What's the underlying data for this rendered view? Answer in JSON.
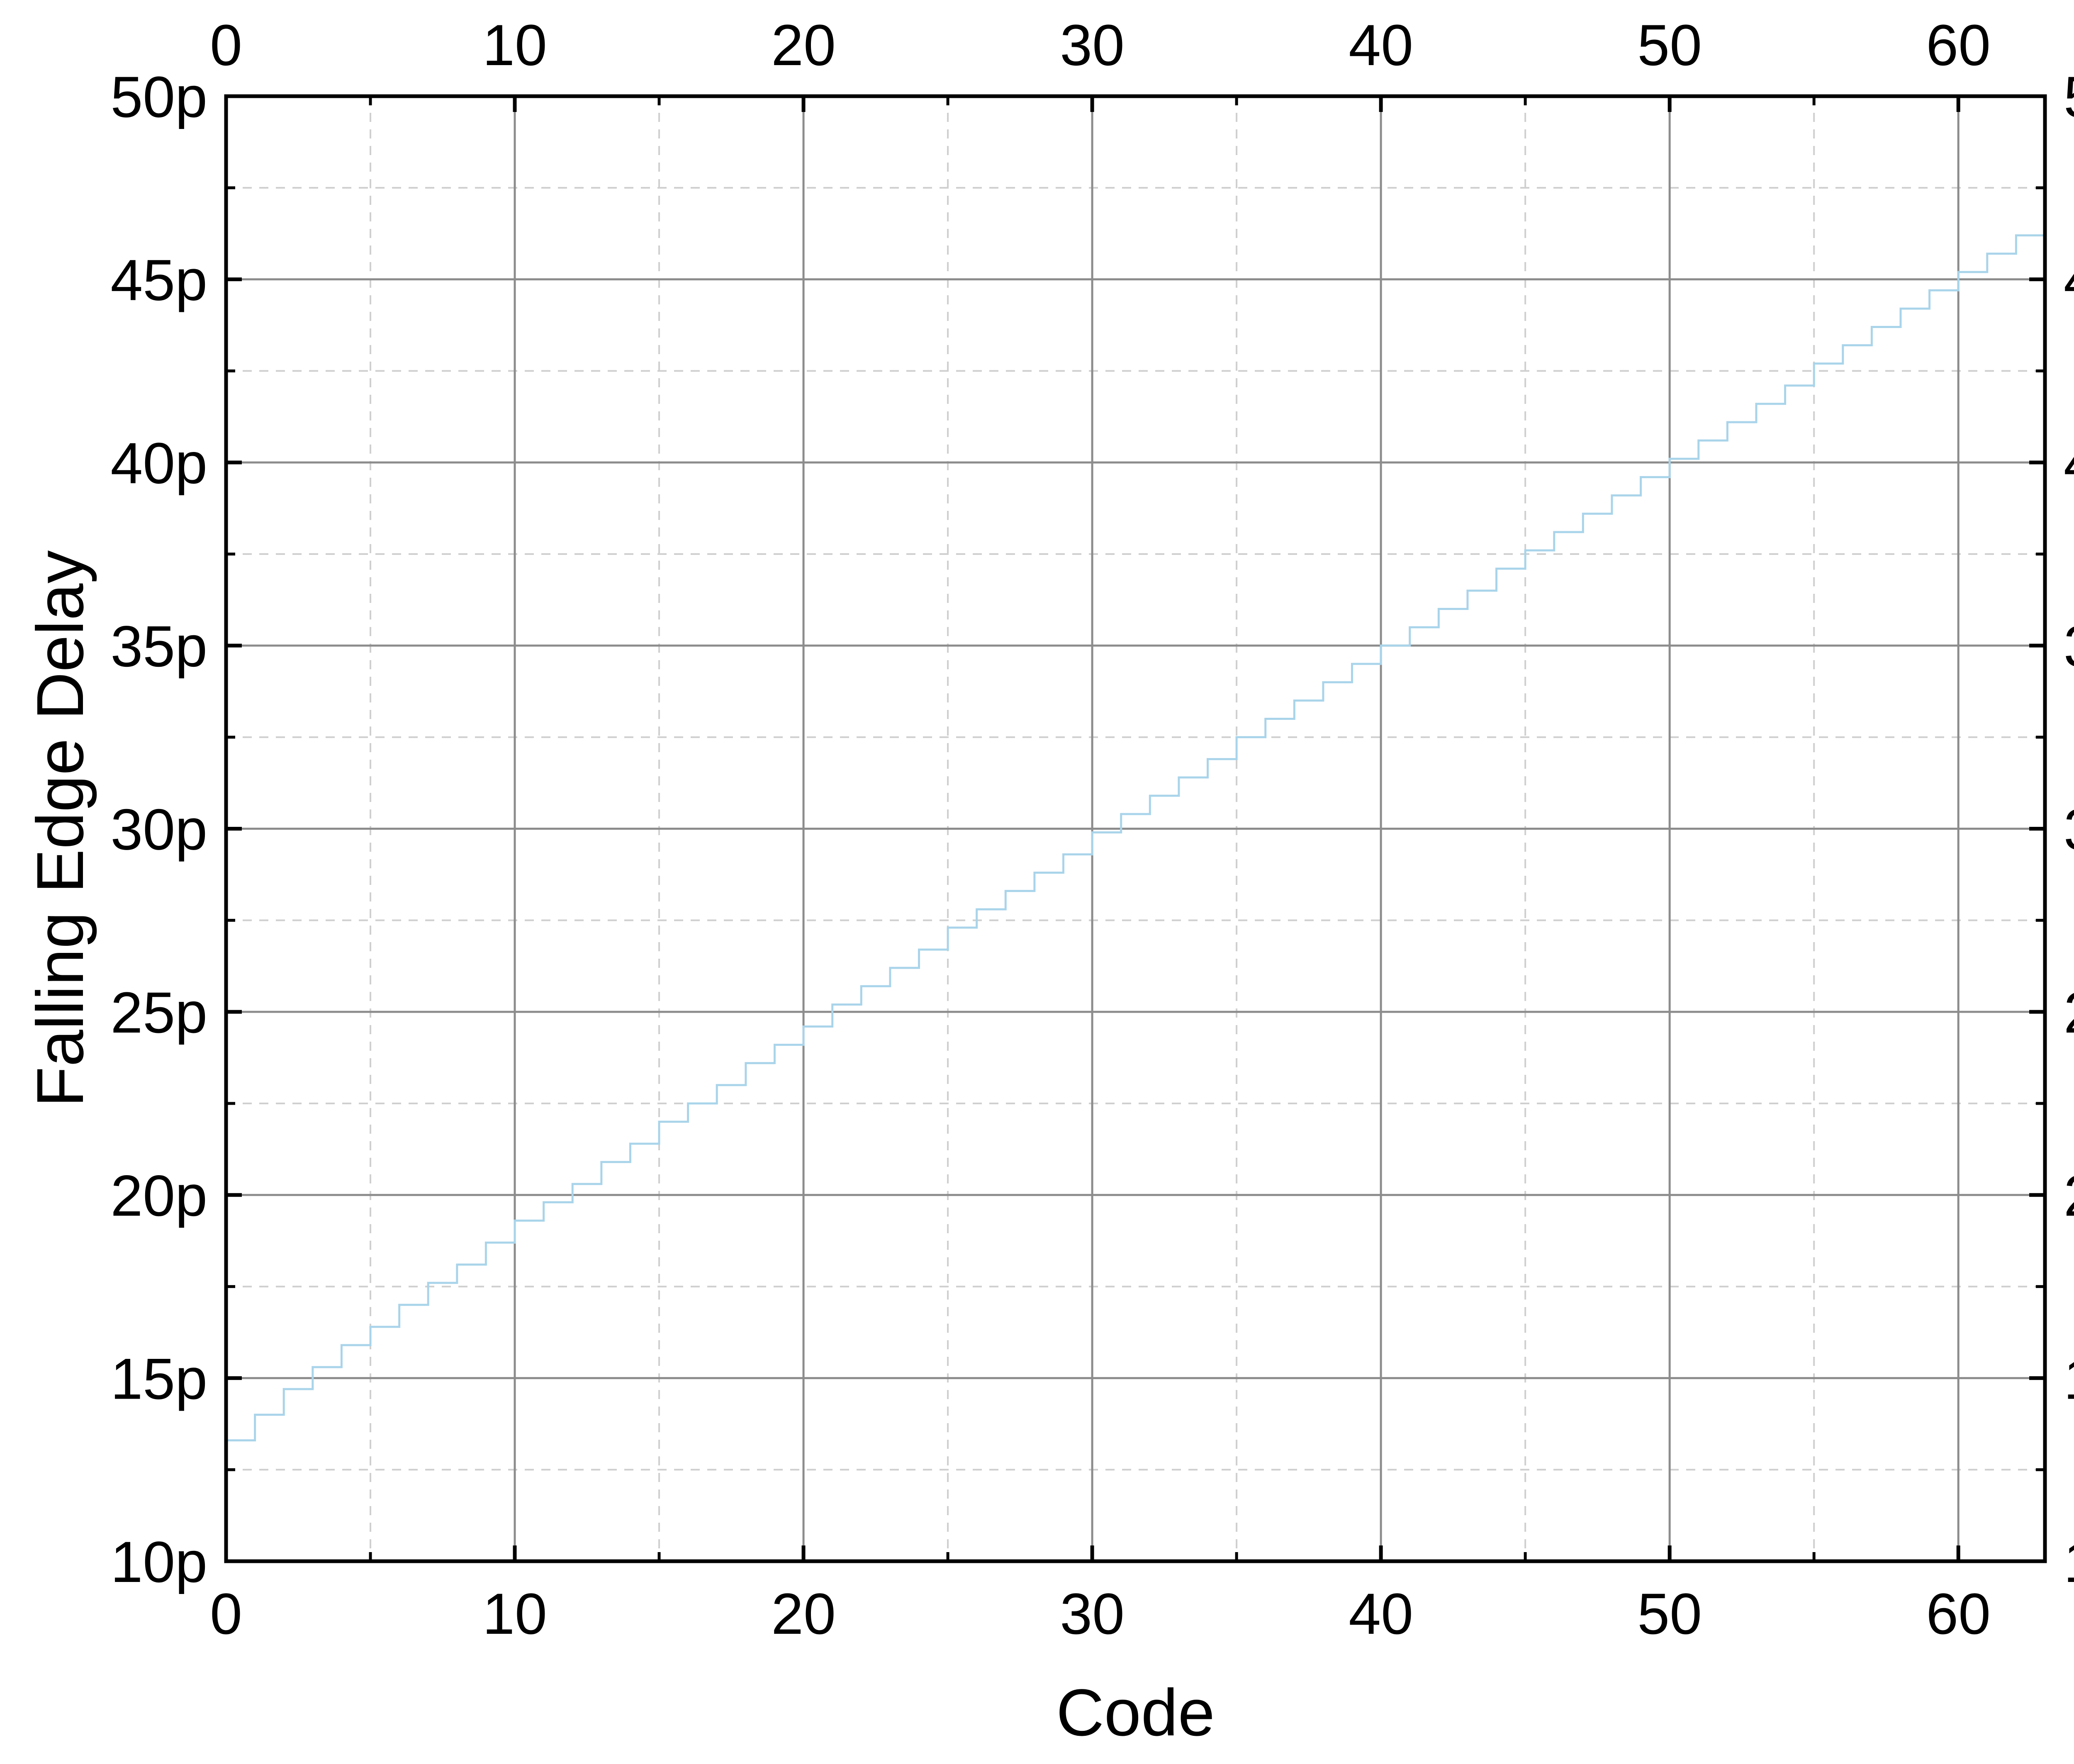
{
  "chart_data": {
    "type": "line",
    "step": true,
    "title": "",
    "xlabel": "Code",
    "ylabel": "Falling Edge Delay",
    "xlim": [
      0,
      63
    ],
    "ylim": [
      10,
      50
    ],
    "x_ticks": [
      0,
      10,
      20,
      30,
      40,
      50,
      60
    ],
    "y_ticks": [
      10,
      15,
      20,
      25,
      30,
      35,
      40,
      45,
      50
    ],
    "y_tick_labels": [
      "10p",
      "15p",
      "20p",
      "25p",
      "30p",
      "35p",
      "40p",
      "45p",
      "50p"
    ],
    "y_unit_suffix": "p",
    "grid": {
      "major": true,
      "minor": true,
      "minor_style": "dashed"
    },
    "mirror_axes": {
      "top": true,
      "right": true
    },
    "legend": "none",
    "series": [
      {
        "color": "#a9d4ea",
        "x": [
          0,
          1,
          2,
          3,
          4,
          5,
          6,
          7,
          8,
          9,
          10,
          11,
          12,
          13,
          14,
          15,
          16,
          17,
          18,
          19,
          20,
          21,
          22,
          23,
          24,
          25,
          26,
          27,
          28,
          29,
          30,
          31,
          32,
          33,
          34,
          35,
          36,
          37,
          38,
          39,
          40,
          41,
          42,
          43,
          44,
          45,
          46,
          47,
          48,
          49,
          50,
          51,
          52,
          53,
          54,
          55,
          56,
          57,
          58,
          59,
          60,
          61,
          62,
          63
        ],
        "values": [
          13.3,
          14.0,
          14.7,
          15.3,
          15.9,
          16.4,
          17.0,
          17.6,
          18.1,
          18.7,
          19.3,
          19.8,
          20.3,
          20.9,
          21.4,
          22.0,
          22.5,
          23.0,
          23.6,
          24.1,
          24.6,
          25.2,
          25.7,
          26.2,
          26.7,
          27.3,
          27.8,
          28.3,
          28.8,
          29.3,
          29.9,
          30.4,
          30.9,
          31.4,
          31.9,
          32.5,
          33.0,
          33.5,
          34.0,
          34.5,
          35.0,
          35.5,
          36.0,
          36.5,
          37.1,
          37.6,
          38.1,
          38.6,
          39.1,
          39.6,
          40.1,
          40.6,
          41.1,
          41.6,
          42.1,
          42.7,
          43.2,
          43.7,
          44.2,
          44.7,
          45.2,
          45.7,
          46.2,
          46.2
        ]
      }
    ]
  }
}
